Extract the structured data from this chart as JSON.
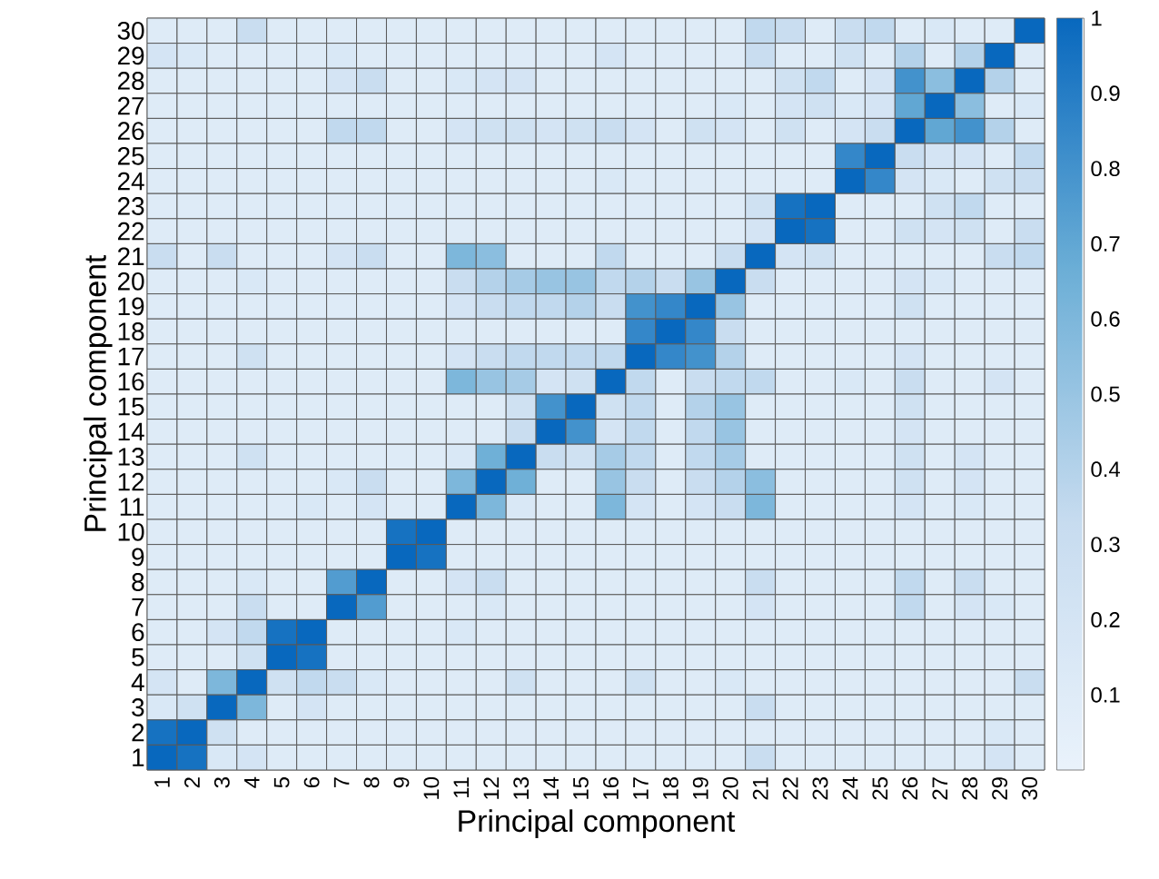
{
  "chart_data": {
    "type": "heatmap",
    "xlabel": "Principal component",
    "ylabel": "Principal component",
    "categories": [
      "1",
      "2",
      "3",
      "4",
      "5",
      "6",
      "7",
      "8",
      "9",
      "10",
      "11",
      "12",
      "13",
      "14",
      "15",
      "16",
      "17",
      "18",
      "19",
      "20",
      "21",
      "22",
      "23",
      "24",
      "25",
      "26",
      "27",
      "28",
      "29",
      "30"
    ],
    "y_categories": [
      "30",
      "29",
      "28",
      "27",
      "26",
      "25",
      "24",
      "23",
      "22",
      "21",
      "20",
      "19",
      "18",
      "17",
      "16",
      "15",
      "14",
      "13",
      "12",
      "11",
      "10",
      "9",
      "8",
      "7",
      "6",
      "5",
      "4",
      "3",
      "2",
      "1"
    ],
    "cells": [
      [
        0.1,
        0.1,
        0.1,
        0.3,
        0.1,
        0.1,
        0.1,
        0.1,
        0.1,
        0.1,
        0.1,
        0.1,
        0.1,
        0.1,
        0.1,
        0.1,
        0.1,
        0.1,
        0.1,
        0.1,
        0.35,
        0.3,
        0.1,
        0.3,
        0.35,
        0.1,
        0.15,
        0.1,
        0.1,
        1
      ],
      [
        0.2,
        0.15,
        0.1,
        0.1,
        0.1,
        0.1,
        0.15,
        0.1,
        0.1,
        0.1,
        0.1,
        0.1,
        0.1,
        0.1,
        0.1,
        0.2,
        0.1,
        0.1,
        0.1,
        0.1,
        0.3,
        0.1,
        0.1,
        0.25,
        0.1,
        0.4,
        0.1,
        0.4,
        1,
        0.1
      ],
      [
        0.1,
        0.1,
        0.1,
        0.1,
        0.1,
        0.1,
        0.2,
        0.3,
        0.1,
        0.1,
        0.15,
        0.2,
        0.2,
        0.1,
        0.1,
        0.1,
        0.1,
        0.1,
        0.1,
        0.1,
        0.1,
        0.25,
        0.35,
        0.1,
        0.2,
        0.8,
        0.55,
        1,
        0.4,
        0.1
      ],
      [
        0.1,
        0.1,
        0.1,
        0.1,
        0.1,
        0.1,
        0.1,
        0.1,
        0.1,
        0.1,
        0.1,
        0.1,
        0.1,
        0.1,
        0.1,
        0.1,
        0.1,
        0.1,
        0.1,
        0.15,
        0.1,
        0.2,
        0.25,
        0.15,
        0.2,
        0.7,
        1,
        0.55,
        0.1,
        0.15
      ],
      [
        0.1,
        0.1,
        0.1,
        0.1,
        0.1,
        0.1,
        0.35,
        0.35,
        0.1,
        0.1,
        0.2,
        0.25,
        0.25,
        0.2,
        0.25,
        0.3,
        0.2,
        0.1,
        0.25,
        0.2,
        0.1,
        0.25,
        0.1,
        0.2,
        0.3,
        1,
        0.7,
        0.8,
        0.4,
        0.1
      ],
      [
        0.1,
        0.1,
        0.1,
        0.1,
        0.1,
        0.1,
        0.1,
        0.1,
        0.1,
        0.1,
        0.1,
        0.1,
        0.1,
        0.1,
        0.1,
        0.1,
        0.1,
        0.1,
        0.1,
        0.1,
        0.1,
        0.1,
        0.1,
        0.85,
        1,
        0.3,
        0.2,
        0.2,
        0.1,
        0.35
      ],
      [
        0.1,
        0.1,
        0.1,
        0.1,
        0.1,
        0.1,
        0.1,
        0.1,
        0.1,
        0.1,
        0.1,
        0.1,
        0.1,
        0.1,
        0.1,
        0.15,
        0.1,
        0.1,
        0.1,
        0.1,
        0.1,
        0.1,
        0.1,
        1,
        0.85,
        0.2,
        0.15,
        0.1,
        0.25,
        0.3
      ],
      [
        0.1,
        0.1,
        0.1,
        0.1,
        0.1,
        0.1,
        0.1,
        0.1,
        0.1,
        0.1,
        0.1,
        0.1,
        0.1,
        0.1,
        0.1,
        0.1,
        0.1,
        0.1,
        0.1,
        0.1,
        0.25,
        0.95,
        1,
        0.1,
        0.1,
        0.1,
        0.25,
        0.35,
        0.1,
        0.1
      ],
      [
        0.1,
        0.1,
        0.1,
        0.1,
        0.1,
        0.1,
        0.1,
        0.1,
        0.1,
        0.1,
        0.1,
        0.1,
        0.1,
        0.1,
        0.1,
        0.1,
        0.1,
        0.1,
        0.1,
        0.1,
        0.2,
        1,
        0.95,
        0.1,
        0.1,
        0.25,
        0.2,
        0.25,
        0.1,
        0.3
      ],
      [
        0.3,
        0.1,
        0.3,
        0.1,
        0.1,
        0.1,
        0.2,
        0.3,
        0.1,
        0.1,
        0.6,
        0.55,
        0.1,
        0.1,
        0.1,
        0.35,
        0.1,
        0.1,
        0.1,
        0.3,
        1,
        0.2,
        0.25,
        0.1,
        0.1,
        0.1,
        0.1,
        0.1,
        0.3,
        0.35
      ],
      [
        0.1,
        0.1,
        0.1,
        0.15,
        0.1,
        0.1,
        0.1,
        0.1,
        0.1,
        0.1,
        0.3,
        0.4,
        0.45,
        0.5,
        0.5,
        0.35,
        0.4,
        0.3,
        0.5,
        1,
        0.3,
        0.1,
        0.1,
        0.1,
        0.1,
        0.2,
        0.15,
        0.1,
        0.1,
        0.1
      ],
      [
        0.1,
        0.1,
        0.1,
        0.1,
        0.1,
        0.1,
        0.1,
        0.1,
        0.1,
        0.1,
        0.2,
        0.3,
        0.35,
        0.35,
        0.4,
        0.3,
        0.8,
        0.85,
        1,
        0.5,
        0.1,
        0.1,
        0.1,
        0.1,
        0.1,
        0.25,
        0.1,
        0.1,
        0.1,
        0.1
      ],
      [
        0.1,
        0.1,
        0.1,
        0.1,
        0.1,
        0.1,
        0.1,
        0.1,
        0.1,
        0.1,
        0.1,
        0.1,
        0.1,
        0.1,
        0.1,
        0.1,
        0.85,
        1,
        0.85,
        0.3,
        0.1,
        0.1,
        0.1,
        0.1,
        0.1,
        0.1,
        0.1,
        0.1,
        0.1,
        0.1
      ],
      [
        0.1,
        0.1,
        0.1,
        0.25,
        0.1,
        0.1,
        0.1,
        0.1,
        0.1,
        0.1,
        0.2,
        0.3,
        0.35,
        0.35,
        0.35,
        0.35,
        1,
        0.85,
        0.8,
        0.4,
        0.1,
        0.1,
        0.1,
        0.1,
        0.1,
        0.2,
        0.1,
        0.1,
        0.1,
        0.1
      ],
      [
        0.1,
        0.1,
        0.1,
        0.1,
        0.1,
        0.1,
        0.1,
        0.1,
        0.1,
        0.1,
        0.6,
        0.5,
        0.45,
        0.2,
        0.25,
        1,
        0.35,
        0.1,
        0.3,
        0.35,
        0.35,
        0.1,
        0.1,
        0.15,
        0.1,
        0.3,
        0.1,
        0.1,
        0.2,
        0.1
      ],
      [
        0.1,
        0.1,
        0.1,
        0.1,
        0.1,
        0.1,
        0.1,
        0.1,
        0.1,
        0.1,
        0.1,
        0.1,
        0.25,
        0.8,
        1,
        0.25,
        0.35,
        0.1,
        0.4,
        0.5,
        0.1,
        0.1,
        0.1,
        0.1,
        0.1,
        0.25,
        0.1,
        0.1,
        0.1,
        0.1
      ],
      [
        0.1,
        0.1,
        0.1,
        0.1,
        0.1,
        0.1,
        0.1,
        0.1,
        0.1,
        0.1,
        0.1,
        0.1,
        0.3,
        1,
        0.8,
        0.2,
        0.35,
        0.1,
        0.35,
        0.5,
        0.1,
        0.1,
        0.1,
        0.1,
        0.1,
        0.2,
        0.1,
        0.1,
        0.1,
        0.1
      ],
      [
        0.1,
        0.1,
        0.1,
        0.25,
        0.1,
        0.1,
        0.1,
        0.1,
        0.1,
        0.1,
        0.15,
        0.65,
        1,
        0.3,
        0.25,
        0.45,
        0.35,
        0.1,
        0.35,
        0.45,
        0.1,
        0.1,
        0.1,
        0.1,
        0.1,
        0.25,
        0.1,
        0.2,
        0.1,
        0.1
      ],
      [
        0.1,
        0.1,
        0.1,
        0.1,
        0.1,
        0.1,
        0.15,
        0.3,
        0.1,
        0.1,
        0.6,
        1,
        0.65,
        0.1,
        0.1,
        0.5,
        0.3,
        0.1,
        0.3,
        0.4,
        0.55,
        0.1,
        0.1,
        0.1,
        0.1,
        0.25,
        0.1,
        0.2,
        0.1,
        0.1
      ],
      [
        0.1,
        0.1,
        0.1,
        0.1,
        0.1,
        0.15,
        0.1,
        0.2,
        0.1,
        0.1,
        1,
        0.6,
        0.15,
        0.1,
        0.1,
        0.6,
        0.2,
        0.1,
        0.2,
        0.3,
        0.6,
        0.1,
        0.1,
        0.1,
        0.1,
        0.2,
        0.1,
        0.15,
        0.1,
        0.1
      ],
      [
        0.1,
        0.1,
        0.1,
        0.1,
        0.1,
        0.1,
        0.1,
        0.1,
        0.95,
        1,
        0.1,
        0.1,
        0.1,
        0.1,
        0.1,
        0.1,
        0.1,
        0.1,
        0.1,
        0.1,
        0.1,
        0.1,
        0.1,
        0.1,
        0.1,
        0.1,
        0.1,
        0.1,
        0.1,
        0.1
      ],
      [
        0.1,
        0.1,
        0.1,
        0.1,
        0.1,
        0.1,
        0.1,
        0.1,
        1,
        0.95,
        0.1,
        0.1,
        0.1,
        0.1,
        0.1,
        0.1,
        0.1,
        0.1,
        0.1,
        0.1,
        0.1,
        0.1,
        0.1,
        0.1,
        0.1,
        0.1,
        0.1,
        0.1,
        0.1,
        0.1
      ],
      [
        0.1,
        0.1,
        0.1,
        0.15,
        0.1,
        0.1,
        0.75,
        1,
        0.1,
        0.1,
        0.2,
        0.3,
        0.1,
        0.1,
        0.1,
        0.1,
        0.1,
        0.1,
        0.1,
        0.1,
        0.3,
        0.1,
        0.1,
        0.1,
        0.1,
        0.35,
        0.1,
        0.3,
        0.1,
        0.1
      ],
      [
        0.1,
        0.1,
        0.1,
        0.3,
        0.1,
        0.1,
        1,
        0.75,
        0.1,
        0.1,
        0.1,
        0.15,
        0.1,
        0.1,
        0.1,
        0.1,
        0.1,
        0.1,
        0.1,
        0.1,
        0.2,
        0.1,
        0.1,
        0.1,
        0.1,
        0.35,
        0.1,
        0.2,
        0.15,
        0.1
      ],
      [
        0.1,
        0.1,
        0.2,
        0.35,
        0.95,
        1,
        0.1,
        0.1,
        0.1,
        0.1,
        0.15,
        0.1,
        0.1,
        0.1,
        0.1,
        0.1,
        0.1,
        0.1,
        0.1,
        0.1,
        0.1,
        0.1,
        0.1,
        0.1,
        0.1,
        0.1,
        0.1,
        0.1,
        0.1,
        0.1
      ],
      [
        0.1,
        0.1,
        0.1,
        0.25,
        1,
        0.95,
        0.1,
        0.1,
        0.1,
        0.1,
        0.1,
        0.1,
        0.1,
        0.1,
        0.1,
        0.1,
        0.1,
        0.1,
        0.1,
        0.1,
        0.1,
        0.1,
        0.1,
        0.1,
        0.1,
        0.1,
        0.1,
        0.1,
        0.1,
        0.1
      ],
      [
        0.2,
        0.1,
        0.6,
        1,
        0.25,
        0.35,
        0.3,
        0.15,
        0.1,
        0.1,
        0.1,
        0.1,
        0.25,
        0.1,
        0.1,
        0.1,
        0.25,
        0.1,
        0.1,
        0.15,
        0.1,
        0.1,
        0.1,
        0.1,
        0.1,
        0.1,
        0.1,
        0.1,
        0.1,
        0.3
      ],
      [
        0.15,
        0.25,
        1,
        0.6,
        0.1,
        0.2,
        0.1,
        0.1,
        0.1,
        0.1,
        0.1,
        0.1,
        0.1,
        0.1,
        0.1,
        0.1,
        0.1,
        0.1,
        0.1,
        0.1,
        0.3,
        0.1,
        0.1,
        0.1,
        0.1,
        0.1,
        0.1,
        0.1,
        0.1,
        0.1
      ],
      [
        0.95,
        1,
        0.25,
        0.1,
        0.1,
        0.1,
        0.1,
        0.1,
        0.1,
        0.1,
        0.1,
        0.1,
        0.1,
        0.1,
        0.1,
        0.1,
        0.1,
        0.1,
        0.1,
        0.1,
        0.1,
        0.1,
        0.1,
        0.1,
        0.1,
        0.1,
        0.1,
        0.1,
        0.15,
        0.1
      ],
      [
        1,
        0.95,
        0.15,
        0.2,
        0.1,
        0.1,
        0.1,
        0.1,
        0.1,
        0.1,
        0.1,
        0.1,
        0.1,
        0.1,
        0.1,
        0.1,
        0.1,
        0.1,
        0.1,
        0.1,
        0.3,
        0.1,
        0.1,
        0.1,
        0.1,
        0.1,
        0.1,
        0.1,
        0.2,
        0.1
      ]
    ],
    "clim": [
      0,
      1
    ],
    "cticks": [
      0.1,
      0.2,
      0.3,
      0.4,
      0.5,
      0.6,
      0.7,
      0.8,
      0.9,
      1
    ]
  }
}
